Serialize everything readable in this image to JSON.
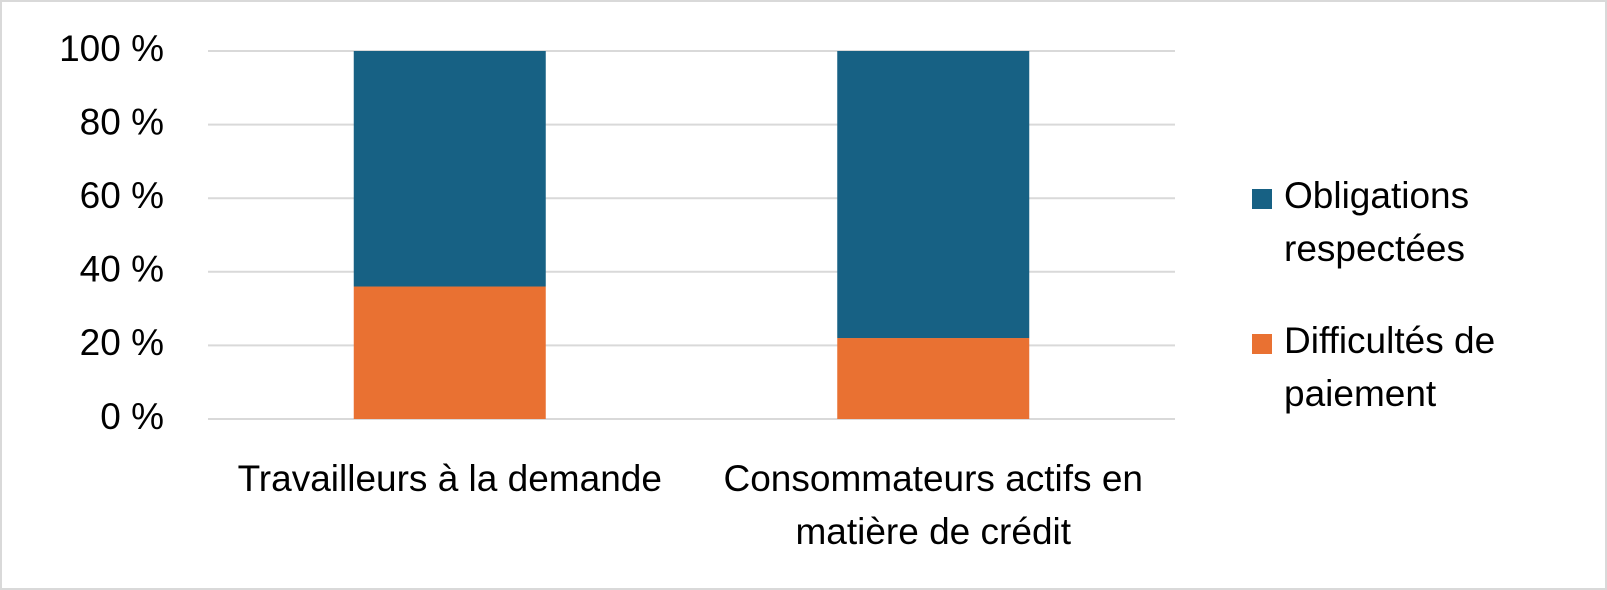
{
  "chart_data": {
    "type": "stacked_bar",
    "categories": [
      "Travailleurs à la demande",
      "Consommateurs actifs en matière de crédit"
    ],
    "series": [
      {
        "name": "Obligations respectées",
        "color": "#176184",
        "values": [
          64,
          78
        ]
      },
      {
        "name": "Difficultés de paiement",
        "color": "#e97132",
        "values": [
          36,
          22
        ]
      }
    ],
    "ylim": [
      0,
      100
    ],
    "yticks": [
      {
        "value": 0,
        "label": "0 %"
      },
      {
        "value": 20,
        "label": "20 %"
      },
      {
        "value": 40,
        "label": "40 %"
      },
      {
        "value": 60,
        "label": "60 %"
      },
      {
        "value": 80,
        "label": "80 %"
      },
      {
        "value": 100,
        "label": "100 %"
      }
    ],
    "grid": true,
    "legend": "right"
  }
}
